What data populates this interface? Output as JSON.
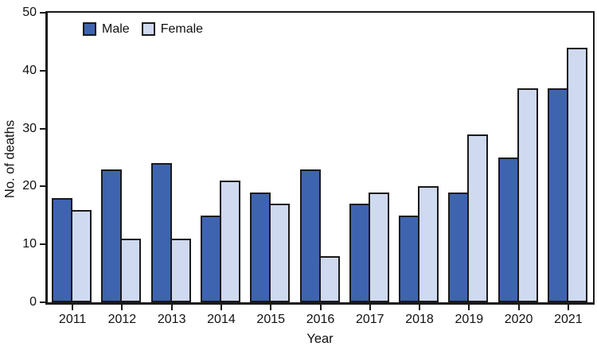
{
  "chart_data": {
    "type": "bar",
    "title": "",
    "xlabel": "Year",
    "ylabel": "No. of deaths",
    "categories": [
      "2011",
      "2012",
      "2013",
      "2014",
      "2015",
      "2016",
      "2017",
      "2018",
      "2019",
      "2020",
      "2021"
    ],
    "series": [
      {
        "name": "Male",
        "color": "#3E64B0",
        "values": [
          18,
          23,
          24,
          15,
          19,
          23,
          17,
          15,
          19,
          25,
          37
        ]
      },
      {
        "name": "Female",
        "color": "#CFD9EF",
        "values": [
          16,
          11,
          11,
          21,
          17,
          8,
          19,
          20,
          29,
          37,
          44
        ]
      }
    ],
    "ylim": [
      0,
      50
    ],
    "yticks": [
      0,
      10,
      20,
      30,
      40,
      50
    ],
    "grid": false,
    "legend_position": "top-left-inside",
    "bar_outline_color": "#1A1A1A",
    "axis_color": "#1A1A1A",
    "background_color": "#FFFFFF"
  }
}
